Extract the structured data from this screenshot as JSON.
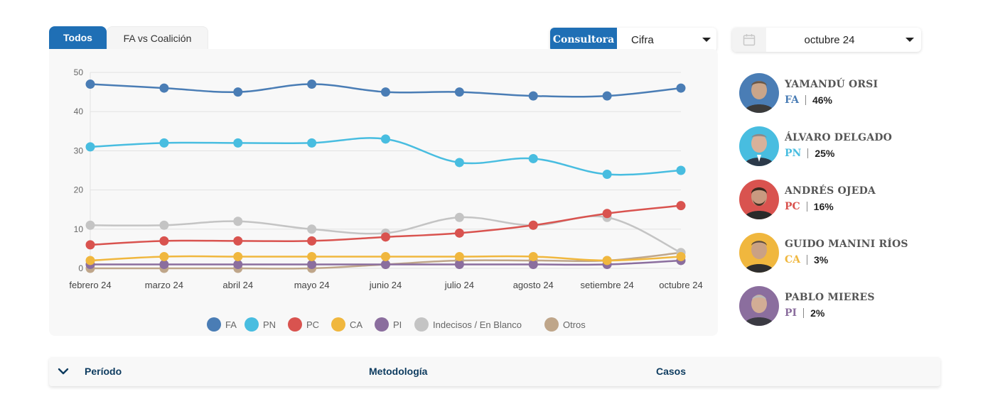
{
  "tabs": [
    {
      "label": "Todos",
      "active": true
    },
    {
      "label": "FA vs Coalición",
      "active": false
    }
  ],
  "consultora": {
    "label": "Consultora",
    "value": "Cifra"
  },
  "date": {
    "value": "octubre 24",
    "icon": "calendar-icon"
  },
  "chart_data": {
    "type": "line",
    "categories": [
      "febrero 24",
      "marzo 24",
      "abril 24",
      "mayo 24",
      "junio 24",
      "julio 24",
      "agosto 24",
      "setiembre 24",
      "octubre 24"
    ],
    "ylim": [
      0,
      50
    ],
    "yticks": [
      0,
      10,
      20,
      30,
      40,
      50
    ],
    "grid": true,
    "legend_position": "bottom",
    "series": [
      {
        "name": "FA",
        "color": "#4a7db5",
        "values": [
          47,
          46,
          45,
          47,
          45,
          45,
          44,
          44,
          46
        ]
      },
      {
        "name": "PN",
        "color": "#48bde0",
        "values": [
          31,
          32,
          32,
          32,
          33,
          27,
          28,
          24,
          25
        ]
      },
      {
        "name": "PC",
        "color": "#d9534f",
        "values": [
          6,
          7,
          7,
          7,
          8,
          9,
          11,
          14,
          16
        ]
      },
      {
        "name": "CA",
        "color": "#f0b73e",
        "values": [
          2,
          3,
          3,
          3,
          3,
          3,
          3,
          2,
          3
        ]
      },
      {
        "name": "PI",
        "color": "#8b6e9e",
        "values": [
          1,
          1,
          1,
          1,
          1,
          1,
          1,
          1,
          2
        ]
      },
      {
        "name": "Indecisos / En Blanco",
        "color": "#c4c4c4",
        "values": [
          11,
          11,
          12,
          10,
          9,
          13,
          11,
          13,
          4
        ]
      },
      {
        "name": "Otros",
        "color": "#bfa68a",
        "values": [
          0,
          0,
          0,
          0,
          1,
          2,
          2,
          2,
          4
        ]
      }
    ]
  },
  "candidates": [
    {
      "name": "YAMANDÚ ORSI",
      "party": "FA",
      "pct": "46%",
      "color": "#4a7db5"
    },
    {
      "name": "ÁLVARO DELGADO",
      "party": "PN",
      "pct": "25%",
      "color": "#48bde0"
    },
    {
      "name": "ANDRÉS OJEDA",
      "party": "PC",
      "pct": "16%",
      "color": "#d9534f"
    },
    {
      "name": "GUIDO MANINI RÍOS",
      "party": "CA",
      "pct": "3%",
      "color": "#f0b73e"
    },
    {
      "name": "PABLO MIERES",
      "party": "PI",
      "pct": "2%",
      "color": "#8b6e9e"
    }
  ],
  "table_header": {
    "col1": "Período",
    "col2": "Metodología",
    "col3": "Casos"
  }
}
